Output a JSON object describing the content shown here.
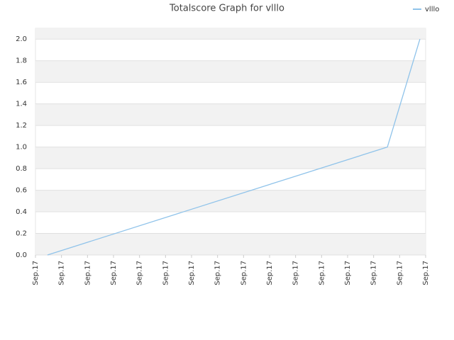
{
  "chart_data": {
    "type": "line",
    "title": "Totalscore Graph for vlllo",
    "x": [
      0.46,
      13.53,
      14.78
    ],
    "series": [
      {
        "name": "vlllo",
        "color": "#8fc3ea",
        "values": [
          0,
          1.0,
          2.0
        ]
      }
    ],
    "xlim": [
      0,
      15
    ],
    "xticks": [
      {
        "value": 0,
        "label": "Sep.17"
      },
      {
        "value": 1,
        "label": "Sep.17"
      },
      {
        "value": 2,
        "label": "Sep.17"
      },
      {
        "value": 3,
        "label": "Sep.17"
      },
      {
        "value": 4,
        "label": "Sep.17"
      },
      {
        "value": 5,
        "label": "Sep.17"
      },
      {
        "value": 6,
        "label": "Sep.17"
      },
      {
        "value": 7,
        "label": "Sep.17"
      },
      {
        "value": 8,
        "label": "Sep.17"
      },
      {
        "value": 9,
        "label": "Sep.17"
      },
      {
        "value": 10,
        "label": "Sep.17"
      },
      {
        "value": 11,
        "label": "Sep.17"
      },
      {
        "value": 12,
        "label": "Sep.17"
      },
      {
        "value": 13,
        "label": "Sep.17"
      },
      {
        "value": 14,
        "label": "Sep.17"
      },
      {
        "value": 15,
        "label": "Sep.17"
      }
    ],
    "ylim": [
      0,
      2.1
    ],
    "yticks": [
      {
        "value": 0,
        "label": "0.0"
      },
      {
        "value": 0.2,
        "label": "0.2"
      },
      {
        "value": 0.4,
        "label": "0.4"
      },
      {
        "value": 0.6,
        "label": "0.6"
      },
      {
        "value": 0.8,
        "label": "0.8"
      },
      {
        "value": 1.0,
        "label": "1.0"
      },
      {
        "value": 1.2,
        "label": "1.2"
      },
      {
        "value": 1.4,
        "label": "1.4"
      },
      {
        "value": 1.6,
        "label": "1.6"
      },
      {
        "value": 1.8,
        "label": "1.8"
      },
      {
        "value": 2.0,
        "label": "2.0"
      }
    ],
    "grid": true,
    "legend": "top-right"
  }
}
